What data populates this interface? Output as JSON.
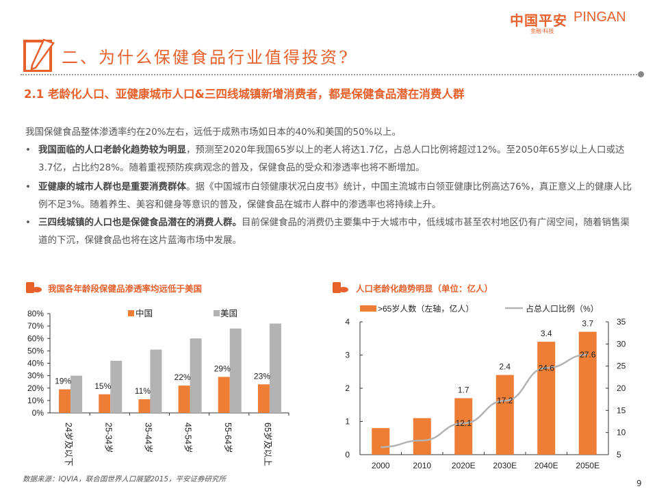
{
  "logo": {
    "cn": "中国平安",
    "en": "PINGAN",
    "sub": "金融·科技"
  },
  "title": "二、为什么保健食品行业值得投资?",
  "subtitle": "2.1 老龄化人口、亚健康城市人口&三四线城镇新增消费者，都是保健食品潜在消费人群",
  "intro": "我国保健食品整体渗透率约在20%左右，远低于成熟市场如日本的40%和美国的50%以上。",
  "bullets": [
    {
      "bold": "我国面临的人口老龄化趋势较为明显",
      "text": "，预测至2020年我国65岁以上的老人将达1.7亿，占总人口比例将超过12%。至2050年65岁以上人口或达3.7亿，占比约28%。随着重视预防疾病观念的普及，保健食品的受众和渗透率也将不断增加。"
    },
    {
      "bold": "亚健康的城市人群也是重要消费群体",
      "text": "。据《中国城市白领健康状况白皮书》统计，中国主流城市白领亚健康比例高达76%，真正意义上的健康人比例不足3%。随着养生、美容和健身等意识的普及，保健食品在城市人群中的渗透率也将持续上升。"
    },
    {
      "bold": "三四线城镇的人口也是保健食品潜在的消费人群。",
      "text": "目前保健食品的消费仍主要集中于大城市中，低线城市甚至农村地区仍有广阔空间，随着销售渠道的下沉，保健食品也将在这片蓝海市场中发展。"
    }
  ],
  "bullet_symbol": "•",
  "source": "数据来源：IQVIA，联合国世界人口展望2015，平安证券研究所",
  "page_number": "9",
  "colors": {
    "accent": "#e8602b",
    "bar_orange": "#ee7d35",
    "bar_gray": "#b3b3b3",
    "line_gray": "#b3b3b3"
  },
  "chart_data": [
    {
      "type": "bar",
      "title": "我国各年龄段保健品渗透率均远低于美国",
      "categories": [
        "24岁及以下",
        "25-34岁",
        "35-44岁",
        "45-54岁",
        "55-64岁",
        "65岁及以上"
      ],
      "series": [
        {
          "name": "中国",
          "values": [
            19,
            15,
            11,
            22,
            29,
            23
          ],
          "data_labels": [
            "19%",
            "15%",
            "11%",
            "22%",
            "29%",
            "23%"
          ]
        },
        {
          "name": "美国",
          "values": [
            30,
            42,
            51,
            60,
            68,
            72
          ]
        }
      ],
      "ylim": [
        0,
        80
      ],
      "yticks": [
        "0%",
        "10%",
        "20%",
        "30%",
        "40%",
        "50%",
        "60%",
        "70%",
        "80%"
      ],
      "legend": "top",
      "grid": false
    },
    {
      "type": "bar+line",
      "title": "人口老龄化趋势明显（单位：亿人）",
      "categories": [
        "2000",
        "2010",
        "2020E",
        "2030E",
        "2040E",
        "2050E"
      ],
      "series": [
        {
          "name": ">65岁人数（左轴，亿人）",
          "values": [
            0.8,
            1.1,
            1.7,
            2.4,
            3.4,
            3.7
          ],
          "data_labels": [
            "",
            "",
            "1.7",
            "2.4",
            "3.4",
            "3.7"
          ]
        },
        {
          "name": "占总人口比例（%）",
          "values": [
            6.7,
            8.2,
            12.1,
            17.2,
            24.6,
            27.6
          ],
          "data_labels": [
            "",
            "",
            "12.1",
            "17.2",
            "24.6",
            "27.6"
          ]
        }
      ],
      "ylim": [
        0,
        4
      ],
      "yticks": [
        "0",
        "1",
        "2",
        "3",
        "4"
      ],
      "y2lim": [
        5,
        35
      ],
      "y2ticks": [
        "5",
        "10",
        "15",
        "20",
        "25",
        "30",
        "35"
      ],
      "legend": "top",
      "grid": false
    }
  ]
}
